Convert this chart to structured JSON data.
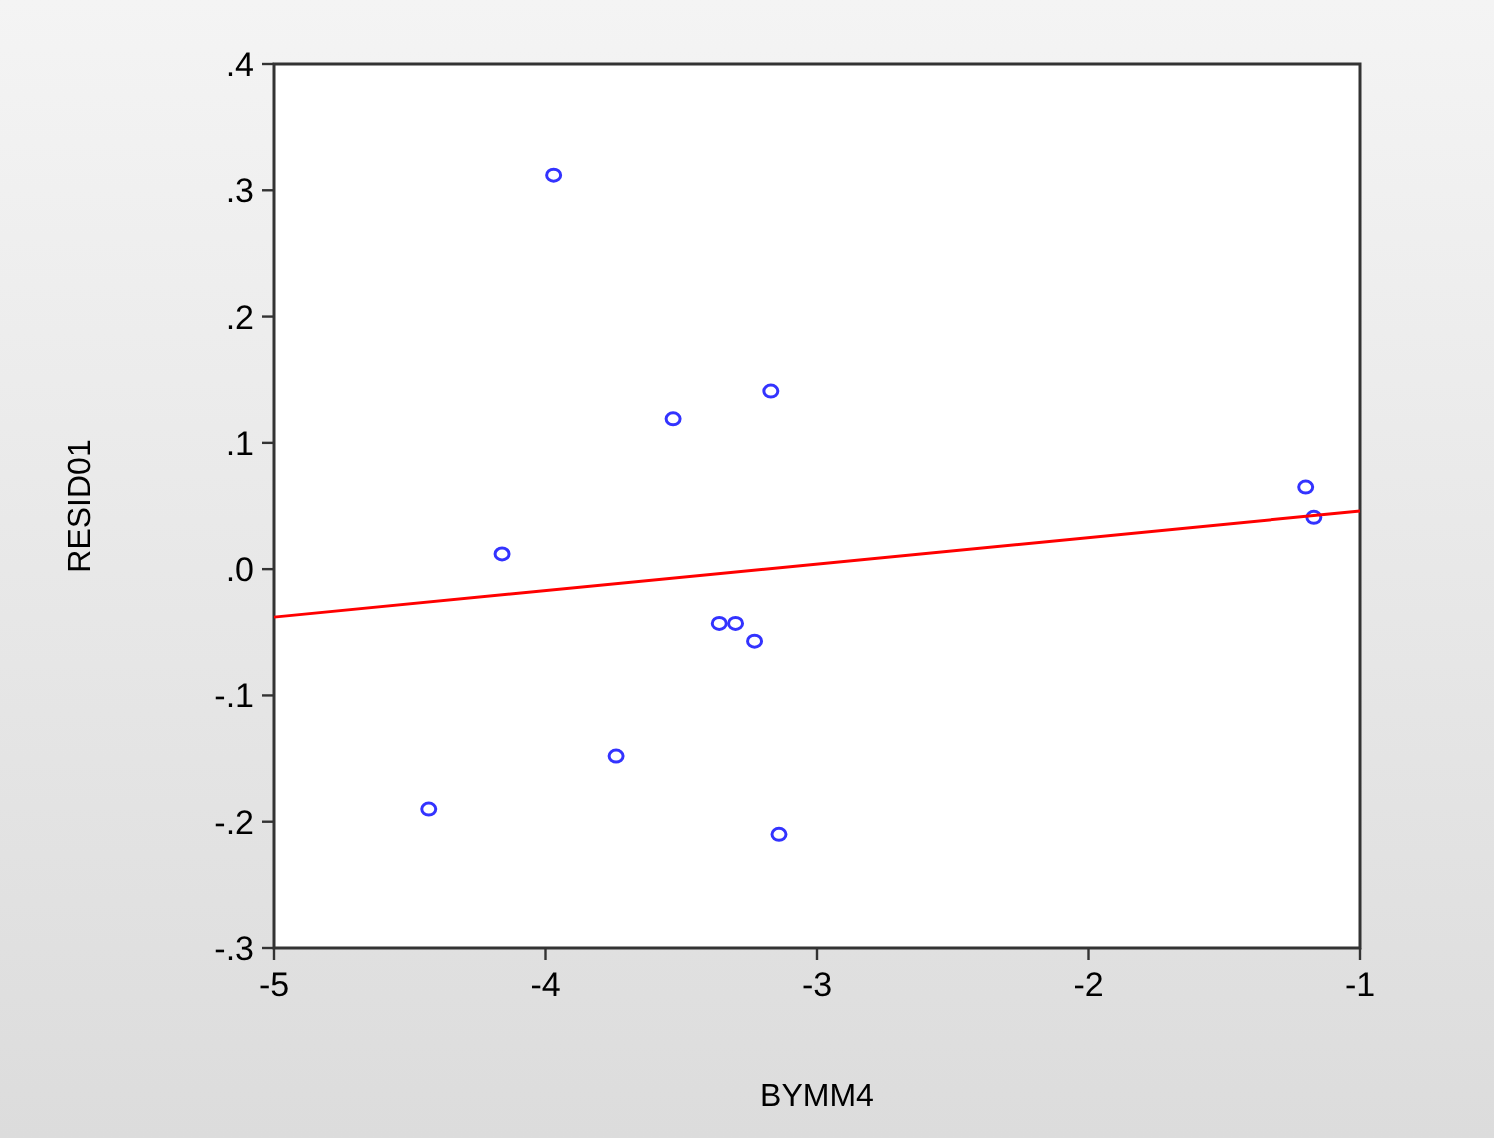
{
  "chart_data": {
    "type": "scatter",
    "xlabel": "BYMM4",
    "ylabel": "RESID01",
    "xlim": [
      -5,
      -1
    ],
    "xticks": [
      -5,
      -4,
      -3,
      -2,
      -1
    ],
    "ylim": [
      -0.3,
      0.4
    ],
    "yticks": [
      {
        "value": -0.3,
        "label": "-.3"
      },
      {
        "value": -0.2,
        "label": "-.2"
      },
      {
        "value": -0.1,
        "label": "-.1"
      },
      {
        "value": 0,
        "label": ".0"
      },
      {
        "value": 0.1,
        "label": ".1"
      },
      {
        "value": 0.2,
        "label": ".2"
      },
      {
        "value": 0.3,
        "label": ".3"
      },
      {
        "value": 0.4,
        "label": ".4"
      }
    ],
    "marker": "circle",
    "series": [
      {
        "color": "#3333ff",
        "x": [
          -3.97,
          -3.53,
          -3.17,
          -4.16,
          -3.36,
          -3.3,
          -3.23,
          -3.74,
          -4.43,
          -3.14,
          -1.2,
          -1.17
        ],
        "values": [
          0.312,
          0.119,
          0.141,
          0.012,
          -0.043,
          -0.043,
          -0.057,
          -0.148,
          -0.19,
          -0.21,
          0.065,
          0.041
        ]
      },
      {
        "type": "line",
        "color": "#ff0000",
        "x": [
          -5,
          -1
        ],
        "values": [
          -0.038,
          0.046
        ],
        "marker": "none"
      }
    ]
  }
}
